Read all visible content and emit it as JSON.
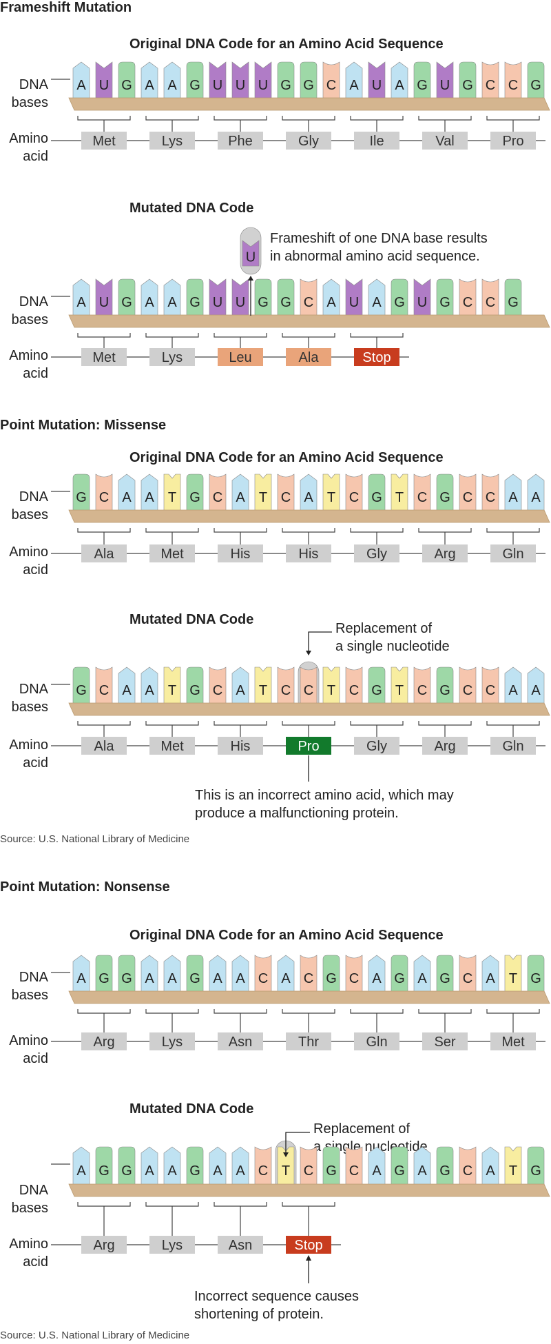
{
  "colors": {
    "A": "#bfe2f2",
    "U": "#b07cc6",
    "G": "#9ed8a7",
    "C": "#f6c6ae",
    "T": "#f8eda0",
    "amino_default": "#cfcfcf",
    "amino_leu_ala": "#e9a47a",
    "amino_stop": "#c83c1e",
    "amino_pro": "#127a2c",
    "backbone": "#d4b58f"
  },
  "axis_labels": {
    "dna": [
      "DNA",
      "bases"
    ],
    "amino": [
      "Amino",
      "acid"
    ]
  },
  "sections": [
    {
      "title": "Frameshift Mutation",
      "panels": [
        {
          "title": "Original DNA Code for an Amino Acid Sequence",
          "bases": [
            "A",
            "U",
            "G",
            "A",
            "A",
            "G",
            "U",
            "U",
            "U",
            "G",
            "G",
            "C",
            "A",
            "U",
            "A",
            "G",
            "U",
            "G",
            "C",
            "C",
            "G"
          ],
          "aminos": [
            {
              "label": "Met",
              "style": "default"
            },
            {
              "label": "Lys",
              "style": "default"
            },
            {
              "label": "Phe",
              "style": "default"
            },
            {
              "label": "Gly",
              "style": "default"
            },
            {
              "label": "Ile",
              "style": "default"
            },
            {
              "label": "Val",
              "style": "default"
            },
            {
              "label": "Pro",
              "style": "default"
            }
          ]
        },
        {
          "title": "Mutated DNA Code",
          "bases": [
            "A",
            "U",
            "G",
            "A",
            "A",
            "G",
            "U",
            "U",
            "G",
            "G",
            "C",
            "A",
            "U",
            "A",
            "G",
            "U",
            "G",
            "C",
            "C",
            "G"
          ],
          "aminos": [
            {
              "label": "Met",
              "style": "default"
            },
            {
              "label": "Lys",
              "style": "default"
            },
            {
              "label": "Leu",
              "style": "leu_ala"
            },
            {
              "label": "Ala",
              "style": "leu_ala"
            },
            {
              "label": "Stop",
              "style": "stop"
            }
          ],
          "callout": {
            "base": "U",
            "text": [
              "Frameshift of one DNA base results",
              "in abnormal amino acid sequence."
            ]
          }
        }
      ],
      "source": ""
    },
    {
      "title": "Point Mutation: Missense",
      "panels": [
        {
          "title": "Original DNA Code for an Amino Acid Sequence",
          "bases": [
            "G",
            "C",
            "A",
            "A",
            "T",
            "G",
            "C",
            "A",
            "T",
            "C",
            "A",
            "T",
            "C",
            "G",
            "T",
            "C",
            "G",
            "C",
            "C",
            "A",
            "A"
          ],
          "aminos": [
            {
              "label": "Ala",
              "style": "default"
            },
            {
              "label": "Met",
              "style": "default"
            },
            {
              "label": "His",
              "style": "default"
            },
            {
              "label": "His",
              "style": "default"
            },
            {
              "label": "Gly",
              "style": "default"
            },
            {
              "label": "Arg",
              "style": "default"
            },
            {
              "label": "Gln",
              "style": "default"
            }
          ]
        },
        {
          "title": "Mutated DNA Code",
          "bases": [
            "G",
            "C",
            "A",
            "A",
            "T",
            "G",
            "C",
            "A",
            "T",
            "C",
            "C",
            "T",
            "C",
            "G",
            "T",
            "C",
            "G",
            "C",
            "C",
            "A",
            "A"
          ],
          "aminos": [
            {
              "label": "Ala",
              "style": "default"
            },
            {
              "label": "Met",
              "style": "default"
            },
            {
              "label": "His",
              "style": "default"
            },
            {
              "label": "Pro",
              "style": "pro"
            },
            {
              "label": "Gly",
              "style": "default"
            },
            {
              "label": "Arg",
              "style": "default"
            },
            {
              "label": "Gln",
              "style": "default"
            }
          ],
          "callout": {
            "text": [
              "Replacement of",
              "a single nucleotide"
            ]
          },
          "note": [
            "This is an incorrect amino acid, which may",
            "produce a malfunctioning protein."
          ]
        }
      ],
      "source": "Source: U.S. National Library of Medicine"
    },
    {
      "title": "Point Mutation: Nonsense",
      "panels": [
        {
          "title": "Original DNA Code for an Amino Acid Sequence",
          "bases": [
            "A",
            "G",
            "G",
            "A",
            "A",
            "G",
            "A",
            "A",
            "C",
            "A",
            "C",
            "G",
            "C",
            "A",
            "G",
            "A",
            "G",
            "C",
            "A",
            "T",
            "G"
          ],
          "aminos": [
            {
              "label": "Arg",
              "style": "default"
            },
            {
              "label": "Lys",
              "style": "default"
            },
            {
              "label": "Asn",
              "style": "default"
            },
            {
              "label": "Thr",
              "style": "default"
            },
            {
              "label": "Gln",
              "style": "default"
            },
            {
              "label": "Ser",
              "style": "default"
            },
            {
              "label": "Met",
              "style": "default"
            }
          ]
        },
        {
          "title": "Mutated DNA Code",
          "bases": [
            "A",
            "G",
            "G",
            "A",
            "A",
            "G",
            "A",
            "A",
            "C",
            "T",
            "C",
            "G",
            "C",
            "A",
            "G",
            "A",
            "G",
            "C",
            "A",
            "T",
            "G"
          ],
          "aminos": [
            {
              "label": "Arg",
              "style": "default"
            },
            {
              "label": "Lys",
              "style": "default"
            },
            {
              "label": "Asn",
              "style": "default"
            },
            {
              "label": "Stop",
              "style": "stop"
            }
          ],
          "callout": {
            "text": [
              "Replacement of",
              "a single nucleotide"
            ]
          },
          "note": [
            "Incorrect sequence causes",
            "shortening of protein."
          ]
        }
      ],
      "source": "Source: U.S. National Library of Medicine"
    }
  ]
}
